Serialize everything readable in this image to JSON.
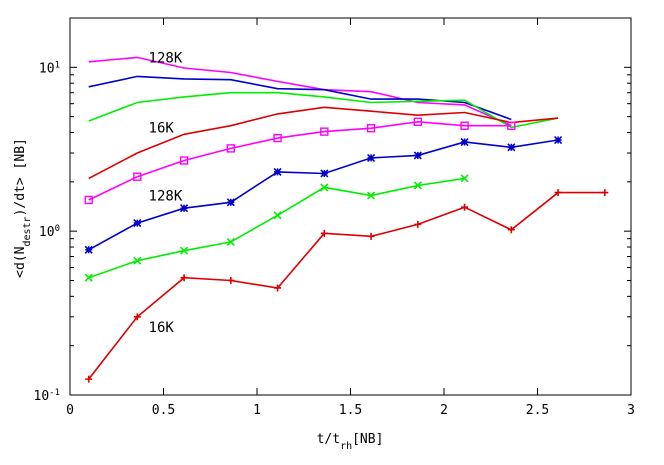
{
  "chart_data": {
    "type": "line",
    "xlabel": "t/t",
    "xlabel_sub": "rh",
    "xlabel_suffix": "[NB]",
    "ylabel_pre": "<d(N",
    "ylabel_sub": "destr",
    "ylabel_post": ")/dt> [NB]",
    "xlim": [
      0,
      3
    ],
    "ylim": [
      0.1,
      20
    ],
    "yscale": "log",
    "grid": false,
    "x_ticks": [
      0,
      0.5,
      1,
      1.5,
      2,
      2.5,
      3
    ],
    "x_tick_labels": [
      "0",
      "0.5",
      "1",
      "1.5",
      "2",
      "2.5",
      "3"
    ],
    "y_ticks": [
      {
        "value": 0.1,
        "base": "10",
        "exp": "-1"
      },
      {
        "value": 1,
        "base": "10",
        "exp": "0"
      },
      {
        "value": 10,
        "base": "10",
        "exp": "1"
      }
    ],
    "annotations": [
      {
        "text": "128K",
        "x": 0.42,
        "y": 11.5
      },
      {
        "text": "16K",
        "x": 0.42,
        "y": 4.3
      },
      {
        "text": "128K",
        "x": 0.42,
        "y": 1.65
      },
      {
        "text": "16K",
        "x": 0.42,
        "y": 0.26
      }
    ],
    "series": [
      {
        "color": "#ff00ff",
        "marker": "none",
        "x": [
          0.1,
          0.36,
          0.61,
          0.86,
          1.11,
          1.36,
          1.61,
          1.86,
          2.11,
          2.36
        ],
        "y": [
          10.8,
          11.5,
          9.9,
          9.3,
          8.2,
          7.3,
          7.1,
          6.1,
          5.9,
          4.4
        ]
      },
      {
        "color": "#0000cc",
        "marker": "none",
        "x": [
          0.1,
          0.36,
          0.61,
          0.86,
          1.11,
          1.36,
          1.61,
          1.86,
          2.11,
          2.36
        ],
        "y": [
          7.6,
          8.8,
          8.5,
          8.4,
          7.4,
          7.3,
          6.4,
          6.4,
          6.1,
          4.8
        ]
      },
      {
        "color": "#00ee00",
        "marker": "none",
        "x": [
          0.1,
          0.36,
          0.61,
          0.86,
          1.11,
          1.36,
          1.61,
          1.86,
          2.11,
          2.36,
          2.61
        ],
        "y": [
          4.7,
          6.1,
          6.6,
          7.0,
          7.0,
          6.6,
          6.1,
          6.2,
          6.3,
          4.3,
          4.9
        ]
      },
      {
        "color": "#dd0000",
        "marker": "none",
        "x": [
          0.1,
          0.36,
          0.61,
          0.86,
          1.11,
          1.36,
          1.61,
          1.86,
          2.11,
          2.36,
          2.61
        ],
        "y": [
          2.1,
          3.0,
          3.9,
          4.4,
          5.2,
          5.7,
          5.4,
          5.1,
          5.3,
          4.6,
          4.9
        ]
      },
      {
        "color": "#ff00ff",
        "marker": "square",
        "x": [
          0.1,
          0.36,
          0.61,
          0.86,
          1.11,
          1.36,
          1.61,
          1.86,
          2.11,
          2.36
        ],
        "y": [
          1.55,
          2.15,
          2.7,
          3.2,
          3.7,
          4.05,
          4.25,
          4.65,
          4.4,
          4.4
        ]
      },
      {
        "color": "#0000cc",
        "marker": "star",
        "x": [
          0.1,
          0.36,
          0.61,
          0.86,
          1.11,
          1.36,
          1.61,
          1.86,
          2.11,
          2.36,
          2.61
        ],
        "y": [
          0.77,
          1.12,
          1.38,
          1.5,
          2.3,
          2.25,
          2.8,
          2.9,
          3.5,
          3.25,
          3.6
        ]
      },
      {
        "color": "#00ee00",
        "marker": "cross",
        "x": [
          0.1,
          0.36,
          0.61,
          0.86,
          1.11,
          1.36,
          1.61,
          1.86,
          2.11
        ],
        "y": [
          0.52,
          0.66,
          0.76,
          0.86,
          1.25,
          1.85,
          1.65,
          1.9,
          2.1
        ]
      },
      {
        "color": "#dd0000",
        "marker": "plus",
        "x": [
          0.1,
          0.36,
          0.61,
          0.86,
          1.11,
          1.36,
          1.61,
          1.86,
          2.11,
          2.36,
          2.61,
          2.86
        ],
        "y": [
          0.125,
          0.3,
          0.52,
          0.5,
          0.45,
          0.97,
          0.93,
          1.1,
          1.4,
          1.02,
          1.72,
          1.72
        ]
      }
    ]
  }
}
